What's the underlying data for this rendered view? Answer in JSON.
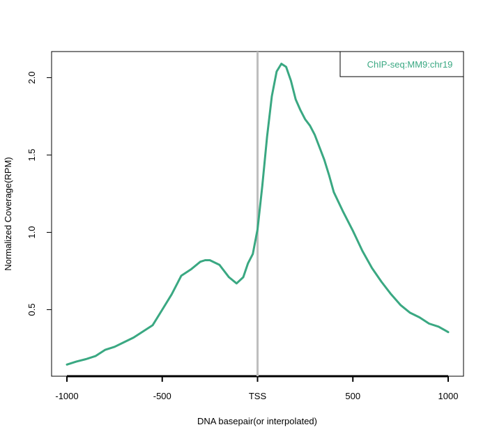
{
  "chart_data": {
    "type": "line",
    "xlabel": "DNA basepair(or interpolated)",
    "ylabel": "Normalized Coverage(RPM)",
    "xlim": [
      -1000,
      1000
    ],
    "ylim": [
      0.1,
      2.2
    ],
    "x_ticks": [
      {
        "value": -1000,
        "label": "-1000"
      },
      {
        "value": -500,
        "label": "-500"
      },
      {
        "value": 0,
        "label": "TSS"
      },
      {
        "value": 500,
        "label": "500"
      },
      {
        "value": 1000,
        "label": "1000"
      }
    ],
    "y_ticks": [
      {
        "value": 0.5,
        "label": "0.5"
      },
      {
        "value": 1.0,
        "label": "1.0"
      },
      {
        "value": 1.5,
        "label": "1.5"
      },
      {
        "value": 2.0,
        "label": "2.0"
      }
    ],
    "vline": {
      "x": 0,
      "color": "#bebebe"
    },
    "legend_position": "top-right",
    "grid": false,
    "series": [
      {
        "name": "ChIP-seq:MM9:chr19",
        "color": "#3aa882",
        "x": [
          -1000,
          -950,
          -900,
          -850,
          -800,
          -750,
          -700,
          -650,
          -600,
          -550,
          -500,
          -450,
          -400,
          -350,
          -300,
          -275,
          -250,
          -200,
          -150,
          -110,
          -75,
          -50,
          -25,
          0,
          25,
          50,
          75,
          100,
          125,
          150,
          175,
          200,
          225,
          250,
          275,
          300,
          325,
          350,
          375,
          400,
          450,
          500,
          550,
          600,
          650,
          700,
          750,
          800,
          850,
          900,
          950,
          1000
        ],
        "y": [
          0.145,
          0.165,
          0.18,
          0.2,
          0.24,
          0.26,
          0.29,
          0.32,
          0.36,
          0.4,
          0.5,
          0.6,
          0.72,
          0.76,
          0.81,
          0.82,
          0.82,
          0.79,
          0.71,
          0.67,
          0.71,
          0.8,
          0.86,
          1.02,
          1.3,
          1.62,
          1.88,
          2.04,
          2.09,
          2.07,
          1.98,
          1.86,
          1.79,
          1.73,
          1.69,
          1.63,
          1.55,
          1.47,
          1.37,
          1.26,
          1.13,
          1.01,
          0.88,
          0.77,
          0.68,
          0.6,
          0.53,
          0.48,
          0.45,
          0.41,
          0.39,
          0.355
        ]
      }
    ]
  }
}
